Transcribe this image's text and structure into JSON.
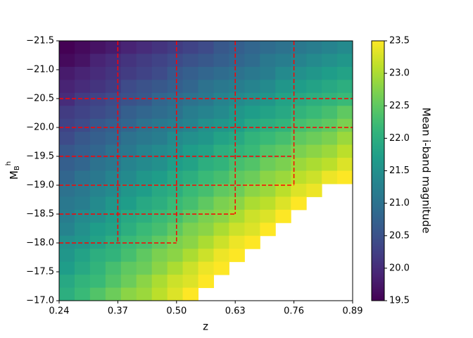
{
  "chart_data": {
    "type": "heatmap",
    "xlabel": "z",
    "ylabel": {
      "main": "M",
      "sub": "B",
      "sup": "h"
    },
    "colorbar_label": "Mean i-band magnitude",
    "colormap": "viridis",
    "xlim": [
      0.24,
      0.89
    ],
    "ylim": [
      -21.5,
      -17.0
    ],
    "clim": [
      19.5,
      23.5
    ],
    "xticks": [
      0.24,
      0.37,
      {
        "value": 0.5,
        "label": "0.50"
      },
      0.63,
      0.76,
      0.89
    ],
    "yticks": [
      {
        "value": -21.5,
        "label": "−21.5"
      },
      {
        "value": -21.0,
        "label": "−21.0"
      },
      {
        "value": -20.5,
        "label": "−20.5"
      },
      {
        "value": -20.0,
        "label": "−20.0"
      },
      {
        "value": -19.5,
        "label": "−19.5"
      },
      {
        "value": -19.0,
        "label": "−19.0"
      },
      {
        "value": -18.5,
        "label": "−18.5"
      },
      {
        "value": -18.0,
        "label": "−18.0"
      },
      {
        "value": -17.5,
        "label": "−17.5"
      },
      {
        "value": -17.0,
        "label": "−17.0"
      }
    ],
    "cticks": [
      19.5,
      {
        "value": 20.0,
        "label": "20.0"
      },
      20.5,
      {
        "value": 21.0,
        "label": "21.0"
      },
      21.5,
      {
        "value": 22.0,
        "label": "22.0"
      },
      22.5,
      {
        "value": 23.0,
        "label": "23.0"
      },
      23.5
    ],
    "z": [
      [
        19.5,
        19.6,
        19.7,
        19.8,
        19.9,
        20.0,
        20.1,
        20.2,
        20.3,
        20.4,
        20.6,
        20.7,
        20.8,
        20.9,
        21.0,
        21.1,
        21.2,
        21.3,
        21.4
      ],
      [
        19.6,
        19.7,
        19.9,
        20.0,
        20.1,
        20.2,
        20.3,
        20.4,
        20.5,
        20.6,
        20.7,
        20.8,
        20.9,
        21.1,
        21.2,
        21.3,
        21.4,
        21.5,
        21.6
      ],
      [
        19.8,
        19.9,
        20.0,
        20.1,
        20.2,
        20.3,
        20.4,
        20.6,
        20.7,
        20.8,
        20.9,
        21.0,
        21.1,
        21.2,
        21.4,
        21.5,
        21.6,
        21.7,
        21.8
      ],
      [
        19.9,
        20.0,
        20.1,
        20.2,
        20.4,
        20.5,
        20.6,
        20.7,
        20.8,
        21.0,
        21.1,
        21.2,
        21.3,
        21.4,
        21.6,
        21.7,
        21.8,
        21.9,
        22.0
      ],
      [
        20.0,
        20.2,
        20.3,
        20.4,
        20.5,
        20.6,
        20.8,
        20.9,
        21.0,
        21.1,
        21.3,
        21.4,
        21.5,
        21.6,
        21.8,
        21.9,
        22.0,
        22.1,
        22.2
      ],
      [
        20.2,
        20.3,
        20.4,
        20.5,
        20.7,
        20.8,
        20.9,
        21.0,
        21.2,
        21.3,
        21.4,
        21.6,
        21.7,
        21.8,
        21.9,
        22.1,
        22.2,
        22.3,
        22.5
      ],
      [
        20.3,
        20.4,
        20.6,
        20.7,
        20.8,
        21.0,
        21.1,
        21.2,
        21.3,
        21.5,
        21.6,
        21.7,
        21.9,
        22.0,
        22.1,
        22.3,
        22.4,
        22.5,
        22.7
      ],
      [
        20.4,
        20.6,
        20.7,
        20.8,
        21.0,
        21.1,
        21.2,
        21.4,
        21.5,
        21.6,
        21.8,
        21.9,
        22.1,
        22.2,
        22.3,
        22.5,
        22.6,
        22.7,
        22.9
      ],
      [
        20.6,
        20.7,
        20.8,
        21.0,
        21.1,
        21.3,
        21.4,
        21.5,
        21.7,
        21.8,
        22.0,
        22.1,
        22.2,
        22.4,
        22.5,
        22.7,
        22.8,
        22.9,
        23.1
      ],
      [
        20.7,
        20.8,
        21.0,
        21.1,
        21.3,
        21.4,
        21.5,
        21.7,
        21.8,
        22.0,
        22.1,
        22.3,
        22.4,
        22.6,
        22.7,
        22.9,
        23.0,
        23.1,
        23.3
      ],
      [
        20.8,
        21.0,
        21.1,
        21.3,
        21.4,
        21.6,
        21.7,
        21.9,
        22.0,
        22.2,
        22.3,
        22.5,
        22.6,
        22.8,
        22.9,
        23.1,
        23.2,
        23.4,
        23.5
      ],
      [
        21.0,
        21.1,
        21.3,
        21.4,
        21.6,
        21.7,
        21.9,
        22.0,
        22.2,
        22.3,
        22.5,
        22.6,
        22.8,
        22.9,
        23.1,
        23.3,
        23.4,
        null,
        null
      ],
      [
        21.1,
        21.2,
        21.4,
        21.6,
        21.7,
        21.9,
        22.0,
        22.2,
        22.3,
        22.5,
        22.7,
        22.8,
        23.0,
        23.1,
        23.3,
        23.5,
        null,
        null,
        null
      ],
      [
        21.2,
        21.4,
        21.5,
        21.7,
        21.9,
        22.0,
        22.2,
        22.3,
        22.5,
        22.7,
        22.8,
        23.0,
        23.2,
        23.3,
        23.5,
        null,
        null,
        null,
        null
      ],
      [
        21.3,
        21.5,
        21.7,
        21.8,
        22.0,
        22.2,
        22.3,
        22.5,
        22.7,
        22.8,
        23.0,
        23.2,
        23.3,
        23.5,
        null,
        null,
        null,
        null,
        null
      ],
      [
        21.5,
        21.6,
        21.8,
        22.0,
        22.2,
        22.3,
        22.5,
        22.7,
        22.8,
        23.0,
        23.2,
        23.4,
        23.5,
        null,
        null,
        null,
        null,
        null,
        null
      ],
      [
        21.6,
        21.8,
        22.0,
        22.1,
        22.3,
        22.5,
        22.7,
        22.8,
        23.0,
        23.2,
        23.4,
        23.5,
        null,
        null,
        null,
        null,
        null,
        null,
        null
      ],
      [
        21.7,
        21.9,
        22.1,
        22.3,
        22.5,
        22.6,
        22.8,
        23.0,
        23.2,
        23.4,
        23.5,
        null,
        null,
        null,
        null,
        null,
        null,
        null,
        null
      ],
      [
        21.9,
        22.1,
        22.2,
        22.4,
        22.6,
        22.8,
        23.0,
        23.2,
        23.3,
        23.5,
        null,
        null,
        null,
        null,
        null,
        null,
        null,
        null,
        null
      ],
      [
        22.0,
        22.2,
        22.4,
        22.6,
        22.8,
        22.9,
        23.1,
        23.3,
        23.5,
        null,
        null,
        null,
        null,
        null,
        null,
        null,
        null,
        null,
        null
      ]
    ],
    "line_color": "#ff0000",
    "line_style": "dashed",
    "lines": [
      {
        "x": [
          0.37,
          0.37
        ],
        "y": [
          -21.5,
          -18.0
        ]
      },
      {
        "x": [
          0.5,
          0.5
        ],
        "y": [
          -21.5,
          -18.0
        ]
      },
      {
        "x": [
          0.63,
          0.63
        ],
        "y": [
          -21.5,
          -18.5
        ]
      },
      {
        "x": [
          0.76,
          0.76
        ],
        "y": [
          -21.5,
          -19.0
        ]
      },
      {
        "x": [
          0.24,
          0.5
        ],
        "y": [
          -18.0,
          -18.0
        ]
      },
      {
        "x": [
          0.24,
          0.63
        ],
        "y": [
          -18.5,
          -18.5
        ]
      },
      {
        "x": [
          0.24,
          0.76
        ],
        "y": [
          -19.0,
          -19.0
        ]
      },
      {
        "x": [
          0.24,
          0.76
        ],
        "y": [
          -19.5,
          -19.5
        ]
      },
      {
        "x": [
          0.24,
          0.89
        ],
        "y": [
          -20.0,
          -20.0
        ]
      },
      {
        "x": [
          0.24,
          0.89
        ],
        "y": [
          -20.5,
          -20.5
        ]
      }
    ]
  }
}
